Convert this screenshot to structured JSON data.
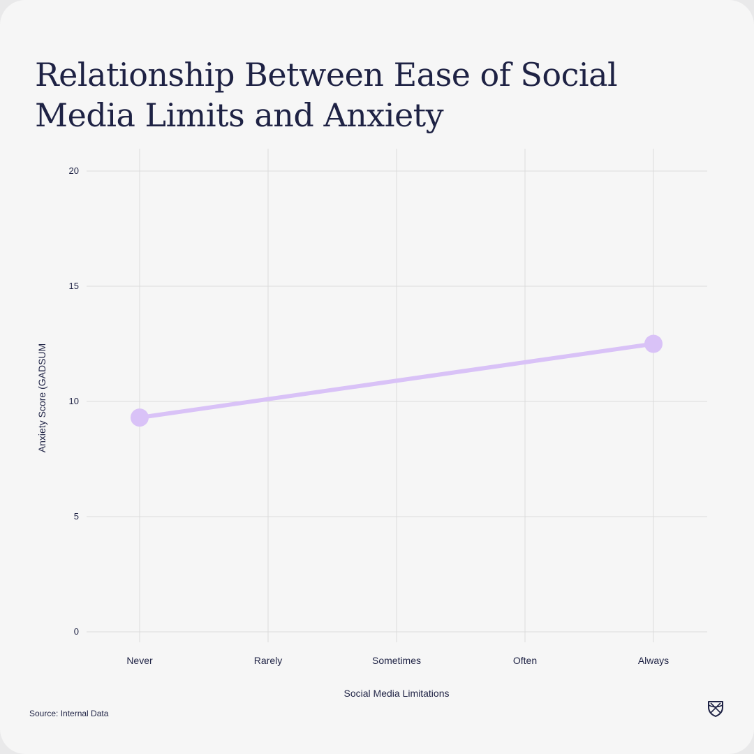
{
  "title": "Relationship Between Ease of Social Media Limits and Anxiety",
  "source": "Source: Internal Data",
  "logo_icon": "shield-icon",
  "colors": {
    "background": "#f6f6f6",
    "text": "#1e2244",
    "grid": "#dcdcdc",
    "series": "#d9c2f7"
  },
  "chart_data": {
    "type": "line",
    "title": "Relationship Between Ease of Social Media Limits and Anxiety",
    "xlabel": "Social Media Limitations",
    "ylabel": "Anxiety Score (GADSUM",
    "categories": [
      "Never",
      "Rarely",
      "Sometimes",
      "Often",
      "Always"
    ],
    "ylim": [
      0,
      20
    ],
    "yticks": [
      0,
      5,
      10,
      15,
      20
    ],
    "grid": true,
    "series": [
      {
        "x": [
          "Never",
          "Always"
        ],
        "values": [
          9.3,
          12.5
        ]
      }
    ]
  }
}
